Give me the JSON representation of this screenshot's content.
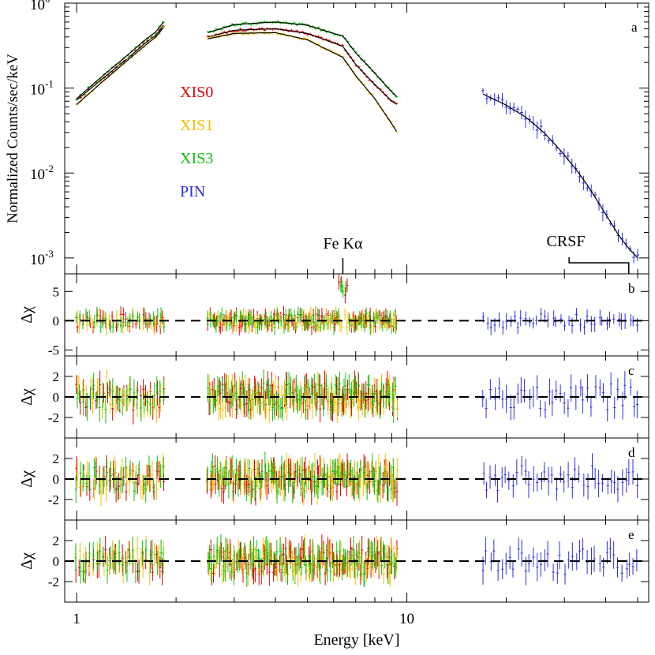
{
  "chart_data": [
    {
      "panel": "a",
      "type": "line",
      "xscale": "log",
      "yscale": "log",
      "xlim": [
        0.92,
        54
      ],
      "ylim": [
        0.00065,
        1.0
      ],
      "ylabel": "Normalized Counts/sec/keV",
      "ytick_mantissa": [
        "10",
        "10",
        "10",
        "10"
      ],
      "ytick_exponents": [
        "0",
        "-1",
        "-2",
        "-3"
      ],
      "ytick_values": [
        1,
        0.1,
        0.01,
        0.001
      ],
      "legend": {
        "placement": "center-left",
        "entries": [
          "XIS0",
          "XIS1",
          "XIS3",
          "PIN"
        ]
      },
      "annotations": [
        {
          "label": "Fe Kα",
          "x": 6.4
        },
        {
          "label": "CRSF",
          "x_range": [
            31,
            47
          ]
        }
      ],
      "series": [
        {
          "name": "XIS0",
          "color": "#e00000",
          "x": [
            1.0,
            1.2,
            1.4,
            1.6,
            1.75,
            1.83,
            2.5,
            3.0,
            4.0,
            5.0,
            6.0,
            6.4,
            7.0,
            8.0,
            9.0,
            9.3
          ],
          "y": [
            0.072,
            0.13,
            0.21,
            0.33,
            0.43,
            0.55,
            0.4,
            0.48,
            0.5,
            0.44,
            0.34,
            0.31,
            0.19,
            0.11,
            0.07,
            0.065
          ]
        },
        {
          "name": "XIS1",
          "color": "#f0c000",
          "x": [
            1.0,
            1.2,
            1.4,
            1.6,
            1.75,
            1.83,
            2.5,
            3.0,
            4.0,
            5.0,
            6.0,
            6.4,
            7.0,
            8.0,
            9.0,
            9.3
          ],
          "y": [
            0.064,
            0.12,
            0.2,
            0.31,
            0.41,
            0.52,
            0.38,
            0.44,
            0.45,
            0.37,
            0.26,
            0.23,
            0.14,
            0.075,
            0.038,
            0.031
          ]
        },
        {
          "name": "XIS3",
          "color": "#10c010",
          "x": [
            1.0,
            1.2,
            1.4,
            1.6,
            1.75,
            1.83,
            2.5,
            3.0,
            4.0,
            5.0,
            6.0,
            6.4,
            7.0,
            8.0,
            9.0,
            9.3
          ],
          "y": [
            0.075,
            0.14,
            0.23,
            0.36,
            0.47,
            0.6,
            0.45,
            0.56,
            0.6,
            0.55,
            0.44,
            0.41,
            0.26,
            0.15,
            0.09,
            0.08
          ]
        },
        {
          "name": "PIN",
          "color": "#3030e0",
          "x": [
            17,
            20,
            23,
            26,
            29,
            32,
            35,
            38,
            41,
            44,
            47,
            50
          ],
          "y": [
            0.085,
            0.063,
            0.045,
            0.03,
            0.019,
            0.012,
            0.0075,
            0.0045,
            0.0028,
            0.0018,
            0.0013,
            0.001
          ]
        }
      ]
    },
    {
      "panel": "b",
      "type": "scatter",
      "ylabel": "Δχ",
      "ylim": [
        -6,
        8
      ],
      "yticks": [
        "-5",
        "0",
        "5"
      ],
      "ytick_values": [
        -5,
        0,
        5
      ],
      "amplitude": 1.2,
      "fe_spike": 7.0
    },
    {
      "panel": "c",
      "type": "scatter",
      "ylabel": "Δχ",
      "ylim": [
        -4,
        4
      ],
      "yticks": [
        "-2",
        "0",
        "2"
      ],
      "ytick_values": [
        -2,
        0,
        2
      ],
      "amplitude": 1.3,
      "fe_spike": 0
    },
    {
      "panel": "d",
      "type": "scatter",
      "ylabel": "Δχ",
      "ylim": [
        -4,
        4
      ],
      "yticks": [
        "-2",
        "0",
        "2"
      ],
      "ytick_values": [
        -2,
        0,
        2
      ],
      "amplitude": 1.3,
      "fe_spike": 0
    },
    {
      "panel": "e",
      "type": "scatter",
      "ylabel": "Δχ",
      "ylim": [
        -4,
        4
      ],
      "yticks": [
        "-2",
        "0",
        "2"
      ],
      "ytick_values": [
        -2,
        0,
        2
      ],
      "amplitude": 1.3,
      "fe_spike": 0
    }
  ],
  "x_axis": {
    "label": "Energy [keV]",
    "ticks": [
      "1",
      "10"
    ],
    "tick_values": [
      1,
      10
    ]
  }
}
